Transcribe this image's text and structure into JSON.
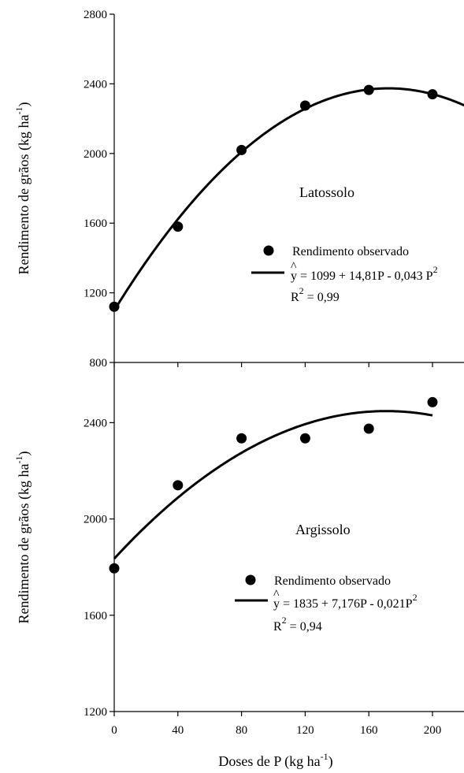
{
  "chart_data": [
    {
      "type": "scatter",
      "annotation": "Latossolo",
      "ylabel": "Rendimento de grãos (kg ha",
      "ylabel_sup": "-1",
      "ylabel_end": ")",
      "xlim": [
        0,
        220
      ],
      "ylim": [
        800,
        2800
      ],
      "yticks": [
        "800",
        "1200",
        "1600",
        "2000",
        "2400",
        "2800"
      ],
      "x": [
        0,
        40,
        80,
        120,
        160,
        200
      ],
      "series": [
        {
          "name": "Rendimento observado",
          "values": [
            1120,
            1580,
            2020,
            2275,
            2365,
            2340
          ]
        }
      ],
      "fit": {
        "intercept": 1099,
        "b1": 14.81,
        "b2": -0.043,
        "x_from": 0,
        "x_to": 220
      },
      "legend": {
        "observed": "Rendimento observado",
        "hat": "^",
        "equation": "y = 1099 + 14,81P - 0,043 P",
        "equation_sup": "2",
        "r2_prefix": "R",
        "r2_sup": "2",
        "r2_value": " = 0,99"
      }
    },
    {
      "type": "scatter",
      "annotation": "Argissolo",
      "ylabel": "Rendimento de grãos (kg ha",
      "ylabel_sup": "-1",
      "ylabel_end": ")",
      "xlim": [
        0,
        220
      ],
      "ylim": [
        1200,
        2650
      ],
      "yticks": [
        "1200",
        "1600",
        "2000",
        "2400"
      ],
      "xticks": [
        "0",
        "40",
        "80",
        "120",
        "160",
        "200"
      ],
      "xlabel": "Doses de P  (kg ha",
      "xlabel_sup": "-1",
      "xlabel_end": ")",
      "x": [
        0,
        40,
        80,
        120,
        160,
        200
      ],
      "series": [
        {
          "name": "Rendimento observado",
          "values": [
            1795,
            2140,
            2335,
            2335,
            2375,
            2485
          ]
        }
      ],
      "fit": {
        "intercept": 1835,
        "b1": 7.176,
        "b2": -0.021,
        "x_from": 0,
        "x_to": 200
      },
      "legend": {
        "observed": "Rendimento observado",
        "hat": "^",
        "equation": "y = 1835 + 7,176P - 0,021P",
        "equation_sup": "2",
        "r2_prefix": "R",
        "r2_sup": "2",
        "r2_value": " = 0,94"
      }
    }
  ]
}
